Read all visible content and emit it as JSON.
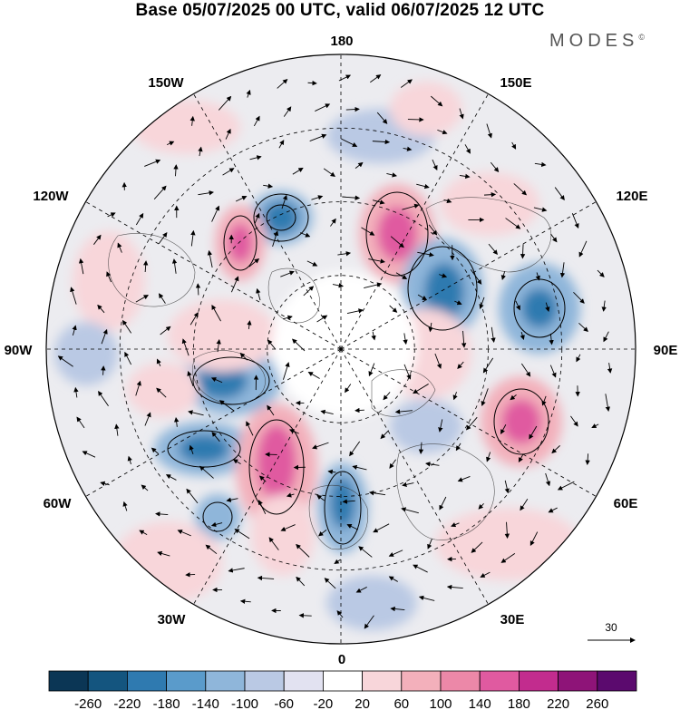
{
  "title": "Base 05/07/2025 00 UTC, valid 06/07/2025 12 UTC",
  "brand": {
    "text": "MODES",
    "mark": "©"
  },
  "longitude_labels": {
    "top": "180",
    "top_left": "150W",
    "top_right": "150E",
    "upper_left": "120W",
    "upper_right": "120E",
    "left": "90W",
    "right": "90E",
    "lower_left": "60W",
    "lower_right": "60E",
    "bottom_left": "30W",
    "bottom_right": "30E",
    "bottom": "0"
  },
  "reference_vector": {
    "value": "30",
    "icon": "arrow-right-icon"
  },
  "colorbar": {
    "ticks": [
      "-260",
      "-220",
      "-180",
      "-140",
      "-100",
      "-60",
      "-20",
      "20",
      "60",
      "100",
      "140",
      "180",
      "220",
      "260"
    ],
    "colors": [
      "#0b3655",
      "#14557f",
      "#2f7ab0",
      "#5a9bcb",
      "#8fb6da",
      "#bac9e4",
      "#e2e2f1",
      "#ffffff",
      "#f8d6da",
      "#f3b0bb",
      "#ec88a8",
      "#e05aa0",
      "#c22c8e",
      "#8e1478",
      "#5b0a6e"
    ]
  }
}
